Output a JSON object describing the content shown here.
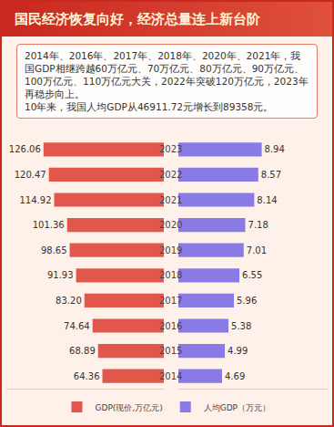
{
  "chart_data": {
    "type": "bar",
    "orientation": "horizontal",
    "title": "国民经济恢复向好，经济总量连上新台阶",
    "annotations": [
      "2014年、2016年、2017年、2018年、2020年、2021年，我国GDP相继跨越60万亿元、70万亿元、80万亿元、90万亿元、100万亿元、110万亿元大关，2022年突破120万亿元，2023年再稳步向上。",
      "10年来，我国人均GDP从46911.72元增长到89358元。"
    ],
    "categories": [
      "2023",
      "2022",
      "2021",
      "2020",
      "2019",
      "2018",
      "2017",
      "2016",
      "2015",
      "2014"
    ],
    "series": [
      {
        "name": "GDP(现价,万亿元)",
        "color": "#e2574c",
        "axis": "x",
        "values": [
          126.06,
          120.47,
          114.92,
          101.36,
          98.65,
          91.93,
          83.2,
          74.64,
          68.89,
          64.36
        ],
        "value_labels": [
          "126.06",
          "120.47",
          "114.92",
          "101.36",
          "98.65",
          "91.93",
          "83.20",
          "74.64",
          "68.89",
          "64.36"
        ]
      },
      {
        "name": "人均GDP（万元）",
        "color": "#8a7be4",
        "axis": "x2",
        "values": [
          8.94,
          8.57,
          8.14,
          7.18,
          7.01,
          6.55,
          5.96,
          5.38,
          4.99,
          4.69
        ]
      }
    ],
    "xlim": [
      0,
      165
    ],
    "x2lim": [
      0,
      16
    ],
    "data_labels": true,
    "tick_labels": "y",
    "grid": false,
    "legend": "bottom"
  }
}
